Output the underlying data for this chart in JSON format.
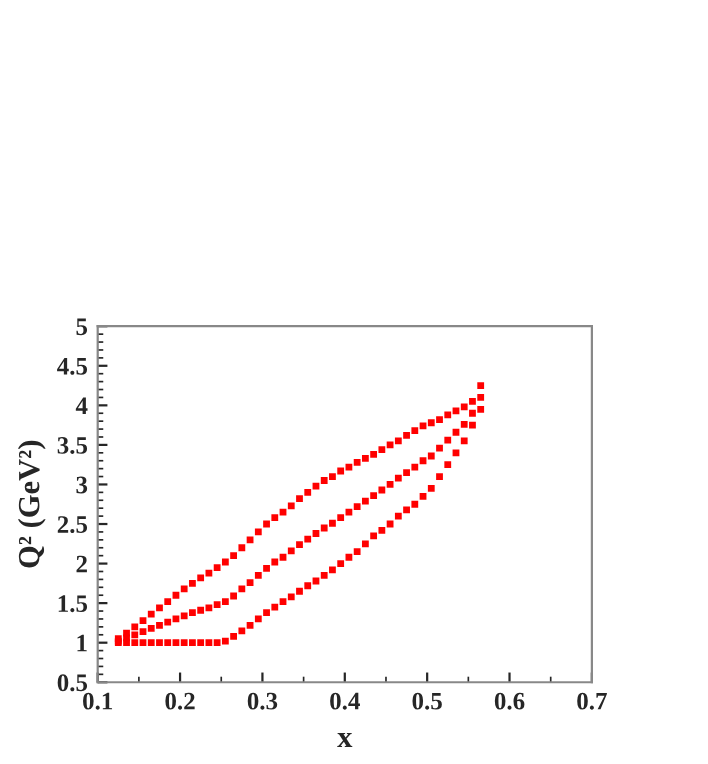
{
  "chart_data": {
    "type": "scatter",
    "xlabel": "x",
    "ylabel": "Q² (GeV²)",
    "marker": "square",
    "grid": false,
    "legend": false,
    "xlim": [
      0.1,
      0.7
    ],
    "xticks": [
      0.1,
      0.2,
      0.3,
      0.4,
      0.5,
      0.6,
      0.7
    ],
    "ylim": [
      0.5,
      5
    ],
    "yticks": [
      0.5,
      1,
      1.5,
      2,
      2.5,
      3,
      3.5,
      4,
      4.5,
      5
    ],
    "series": [
      {
        "color": "#ff0000",
        "x": [
          0.125,
          0.135,
          0.145,
          0.155,
          0.165,
          0.175,
          0.185,
          0.195,
          0.205,
          0.215,
          0.225,
          0.235,
          0.245,
          0.255,
          0.265,
          0.275,
          0.285,
          0.295,
          0.305,
          0.315,
          0.325,
          0.335,
          0.345,
          0.355,
          0.365,
          0.375,
          0.385,
          0.395,
          0.405,
          0.415,
          0.425,
          0.435,
          0.445,
          0.455,
          0.465,
          0.475,
          0.485,
          0.495,
          0.505,
          0.515,
          0.525,
          0.535,
          0.545,
          0.555,
          0.565,
          0.125,
          0.135,
          0.145,
          0.155,
          0.165,
          0.175,
          0.185,
          0.195,
          0.205,
          0.215,
          0.225,
          0.235,
          0.245,
          0.255,
          0.265,
          0.275,
          0.285,
          0.295,
          0.305,
          0.315,
          0.325,
          0.335,
          0.345,
          0.355,
          0.365,
          0.375,
          0.385,
          0.395,
          0.405,
          0.415,
          0.425,
          0.435,
          0.445,
          0.455,
          0.465,
          0.475,
          0.485,
          0.495,
          0.505,
          0.515,
          0.525,
          0.535,
          0.545,
          0.555,
          0.565,
          0.125,
          0.135,
          0.145,
          0.155,
          0.165,
          0.175,
          0.185,
          0.195,
          0.205,
          0.215,
          0.225,
          0.235,
          0.245,
          0.255,
          0.265,
          0.275,
          0.285,
          0.295,
          0.305,
          0.315,
          0.325,
          0.335,
          0.345,
          0.355,
          0.365,
          0.375,
          0.385,
          0.395,
          0.405,
          0.415,
          0.425,
          0.435,
          0.445,
          0.455,
          0.465,
          0.475,
          0.485,
          0.495,
          0.505,
          0.515,
          0.525,
          0.535,
          0.545,
          0.555,
          0.565
        ],
        "values": [
          1.05,
          1.12,
          1.2,
          1.28,
          1.36,
          1.44,
          1.52,
          1.6,
          1.68,
          1.75,
          1.82,
          1.88,
          1.95,
          2.02,
          2.1,
          2.2,
          2.3,
          2.4,
          2.5,
          2.58,
          2.65,
          2.73,
          2.82,
          2.9,
          2.98,
          3.05,
          3.1,
          3.17,
          3.22,
          3.28,
          3.33,
          3.38,
          3.44,
          3.5,
          3.55,
          3.62,
          3.68,
          3.74,
          3.78,
          3.82,
          3.88,
          3.93,
          3.98,
          4.05,
          4.25,
          1.02,
          1.06,
          1.1,
          1.14,
          1.18,
          1.22,
          1.26,
          1.3,
          1.34,
          1.38,
          1.41,
          1.44,
          1.48,
          1.52,
          1.59,
          1.68,
          1.76,
          1.85,
          1.94,
          2.02,
          2.08,
          2.16,
          2.24,
          2.31,
          2.38,
          2.45,
          2.51,
          2.58,
          2.65,
          2.72,
          2.79,
          2.86,
          2.93,
          3.0,
          3.08,
          3.15,
          3.22,
          3.3,
          3.36,
          3.46,
          3.56,
          3.66,
          3.76,
          3.9,
          4.1,
          1.0,
          1.0,
          1.0,
          1.0,
          1.0,
          1.0,
          1.0,
          1.0,
          1.0,
          1.0,
          1.0,
          1.0,
          1.0,
          1.02,
          1.08,
          1.15,
          1.22,
          1.3,
          1.38,
          1.45,
          1.52,
          1.58,
          1.65,
          1.72,
          1.78,
          1.85,
          1.92,
          2.0,
          2.08,
          2.15,
          2.25,
          2.35,
          2.42,
          2.5,
          2.6,
          2.68,
          2.75,
          2.85,
          2.95,
          3.1,
          3.25,
          3.4,
          3.55,
          3.75,
          3.95
        ]
      }
    ]
  }
}
